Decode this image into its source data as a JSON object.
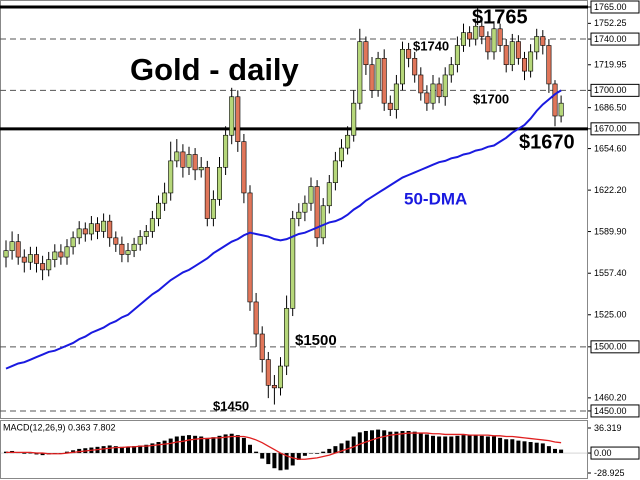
{
  "chart_data": [
    {
      "type": "candlestick",
      "title": "Gold - daily",
      "up_color": "#b6d77a",
      "down_color": "#e0765a",
      "open": [
        1570,
        1575,
        1582,
        1570,
        1566,
        1572,
        1565,
        1560,
        1568,
        1574,
        1570,
        1578,
        1585,
        1592,
        1588,
        1596,
        1590,
        1598,
        1585,
        1580,
        1572,
        1575,
        1580,
        1586,
        1590,
        1600,
        1612,
        1620,
        1645,
        1652,
        1640,
        1650,
        1638,
        1640,
        1600,
        1615,
        1640,
        1665,
        1695,
        1660,
        1620,
        1535,
        1510,
        1490,
        1470,
        1468,
        1485,
        1530,
        1600,
        1605,
        1612,
        1625,
        1585,
        1610,
        1628,
        1645,
        1655,
        1665,
        1690,
        1738,
        1720,
        1700,
        1725,
        1690,
        1685,
        1705,
        1732,
        1725,
        1712,
        1698,
        1690,
        1705,
        1695,
        1712,
        1720,
        1735,
        1745,
        1740,
        1750,
        1742,
        1730,
        1748,
        1735,
        1720,
        1738,
        1725,
        1715,
        1730,
        1742,
        1735,
        1705,
        1680
      ],
      "high": [
        1583,
        1590,
        1588,
        1576,
        1578,
        1578,
        1571,
        1574,
        1580,
        1580,
        1584,
        1590,
        1598,
        1597,
        1602,
        1601,
        1604,
        1603,
        1590,
        1586,
        1581,
        1585,
        1591,
        1595,
        1606,
        1618,
        1628,
        1660,
        1662,
        1658,
        1656,
        1655,
        1648,
        1645,
        1622,
        1648,
        1672,
        1702,
        1700,
        1666,
        1626,
        1542,
        1516,
        1496,
        1478,
        1492,
        1540,
        1606,
        1612,
        1618,
        1632,
        1630,
        1616,
        1634,
        1652,
        1662,
        1672,
        1700,
        1748,
        1742,
        1726,
        1730,
        1732,
        1696,
        1712,
        1738,
        1737,
        1730,
        1718,
        1704,
        1712,
        1710,
        1718,
        1726,
        1742,
        1752,
        1750,
        1756,
        1754,
        1746,
        1754,
        1752,
        1740,
        1744,
        1743,
        1730,
        1736,
        1748,
        1747,
        1740,
        1708,
        1696
      ],
      "low": [
        1562,
        1568,
        1564,
        1558,
        1560,
        1558,
        1552,
        1555,
        1562,
        1564,
        1564,
        1572,
        1580,
        1582,
        1583,
        1584,
        1585,
        1578,
        1574,
        1566,
        1566,
        1570,
        1575,
        1580,
        1585,
        1594,
        1606,
        1614,
        1640,
        1632,
        1634,
        1630,
        1632,
        1594,
        1594,
        1610,
        1634,
        1658,
        1652,
        1612,
        1528,
        1500,
        1480,
        1460,
        1455,
        1462,
        1478,
        1524,
        1594,
        1598,
        1606,
        1578,
        1580,
        1604,
        1622,
        1640,
        1650,
        1660,
        1685,
        1712,
        1694,
        1695,
        1684,
        1680,
        1678,
        1700,
        1718,
        1706,
        1692,
        1684,
        1685,
        1690,
        1688,
        1706,
        1714,
        1730,
        1734,
        1735,
        1736,
        1724,
        1724,
        1730,
        1714,
        1715,
        1720,
        1708,
        1710,
        1724,
        1728,
        1698,
        1672,
        1675
      ],
      "close": [
        1575,
        1582,
        1570,
        1566,
        1572,
        1565,
        1560,
        1568,
        1574,
        1570,
        1578,
        1585,
        1592,
        1588,
        1596,
        1590,
        1598,
        1585,
        1580,
        1572,
        1575,
        1580,
        1586,
        1590,
        1600,
        1612,
        1620,
        1645,
        1652,
        1640,
        1650,
        1638,
        1640,
        1600,
        1615,
        1640,
        1665,
        1695,
        1660,
        1620,
        1535,
        1510,
        1490,
        1470,
        1468,
        1485,
        1530,
        1600,
        1605,
        1612,
        1625,
        1585,
        1610,
        1628,
        1645,
        1655,
        1665,
        1690,
        1738,
        1720,
        1700,
        1725,
        1690,
        1685,
        1705,
        1732,
        1725,
        1712,
        1698,
        1690,
        1705,
        1695,
        1712,
        1720,
        1735,
        1745,
        1740,
        1750,
        1742,
        1730,
        1748,
        1735,
        1720,
        1738,
        1725,
        1715,
        1730,
        1742,
        1735,
        1705,
        1680,
        1690
      ],
      "series": [
        {
          "name": "50-DMA",
          "color": "#1a1ae0",
          "values": [
            1483,
            1485,
            1487,
            1488,
            1490,
            1492,
            1494,
            1496,
            1497,
            1499,
            1501,
            1503,
            1506,
            1508,
            1511,
            1513,
            1515,
            1518,
            1520,
            1523,
            1525,
            1529,
            1533,
            1537,
            1541,
            1544,
            1548,
            1552,
            1555,
            1558,
            1560,
            1563,
            1566,
            1569,
            1573,
            1576,
            1579,
            1582,
            1584,
            1587,
            1589,
            1588,
            1587,
            1586,
            1584,
            1583,
            1584,
            1586,
            1588,
            1589,
            1591,
            1593,
            1595,
            1597,
            1598,
            1600,
            1603,
            1607,
            1610,
            1614,
            1617,
            1620,
            1623,
            1626,
            1629,
            1632,
            1634,
            1636,
            1638,
            1640,
            1642,
            1644,
            1645,
            1647,
            1648,
            1650,
            1651,
            1653,
            1654,
            1656,
            1657,
            1660,
            1663,
            1667,
            1670,
            1673,
            1678,
            1684,
            1689,
            1693,
            1697,
            1700
          ]
        }
      ],
      "levels": [
        {
          "value": 1765,
          "label": "$1765",
          "style": "solid"
        },
        {
          "value": 1740,
          "label": "$1740",
          "style": "dashed"
        },
        {
          "value": 1700,
          "label": "$1700",
          "style": "dashed"
        },
        {
          "value": 1670,
          "label": "$1670",
          "style": "solid"
        },
        {
          "value": 1500,
          "label": "$1500",
          "style": "dashed"
        },
        {
          "value": 1450,
          "label": "$1450",
          "style": "dashed"
        }
      ],
      "ylim": [
        1444.5,
        1768.9
      ],
      "yticks": [
        {
          "value": 1765,
          "label": "1765.00"
        },
        1752.25,
        {
          "value": 1740,
          "label": "1740.00"
        },
        1719.95,
        {
          "value": 1700,
          "label": "1700.00"
        },
        {
          "value": 1686.5,
          "label": "1686.50"
        },
        {
          "value": 1670,
          "label": "1670.00"
        },
        {
          "value": 1654.6,
          "label": "1654.60"
        },
        {
          "value": 1622.2,
          "label": "1622.20"
        },
        {
          "value": 1589.9,
          "label": "1589.90"
        },
        {
          "value": 1557.4,
          "label": "1557.40"
        },
        {
          "value": 1525,
          "label": "1525.00"
        },
        {
          "value": 1500,
          "label": "1500.00"
        },
        {
          "value": 1460.2,
          "label": "1460.20"
        },
        {
          "value": 1450,
          "label": "1450.00"
        }
      ]
    },
    {
      "type": "macd",
      "title": "MACD(12,26,9) 0.363 7.802",
      "histogram": {
        "color": "#000000",
        "values": [
          2,
          3,
          1,
          -1,
          0,
          -2,
          -3,
          -2,
          -1,
          0,
          2,
          4,
          6,
          7,
          8,
          9,
          10,
          11,
          10,
          9,
          9,
          10,
          11,
          12,
          14,
          16,
          18,
          21,
          24,
          25,
          26,
          25,
          24,
          22,
          23,
          25,
          27,
          28,
          26,
          22,
          12,
          2,
          -8,
          -16,
          -22,
          -25,
          -24,
          -18,
          -10,
          -4,
          0,
          -1,
          2,
          6,
          10,
          14,
          18,
          24,
          30,
          32,
          33,
          34,
          33,
          31,
          31,
          32,
          32,
          31,
          29,
          27,
          25,
          24,
          24,
          24,
          25,
          26,
          26,
          26,
          25,
          24,
          24,
          22,
          20,
          20,
          18,
          17,
          16,
          15,
          14,
          10,
          6,
          5
        ]
      },
      "signal": {
        "color": "#e02020",
        "values": [
          1,
          1,
          1,
          1,
          1,
          0,
          0,
          -1,
          -1,
          -1,
          0,
          1,
          2,
          3,
          4,
          5,
          6,
          7,
          8,
          8,
          9,
          9,
          10,
          10,
          11,
          12,
          13,
          14,
          16,
          17,
          19,
          20,
          21,
          21,
          22,
          22,
          23,
          24,
          24,
          24,
          22,
          19,
          15,
          10,
          5,
          0,
          -4,
          -7,
          -9,
          -9,
          -8,
          -7,
          -5,
          -3,
          0,
          3,
          6,
          9,
          13,
          16,
          19,
          22,
          24,
          26,
          27,
          28,
          29,
          29,
          29,
          29,
          28,
          28,
          27,
          27,
          27,
          27,
          26,
          26,
          26,
          26,
          25,
          25,
          24,
          24,
          23,
          22,
          21,
          20,
          19,
          18,
          16,
          15
        ]
      },
      "ylim": [
        -28.925,
        36.319
      ],
      "yticks": [
        36.319,
        {
          "value": 0,
          "label": "0.00"
        },
        -28.925
      ]
    }
  ]
}
